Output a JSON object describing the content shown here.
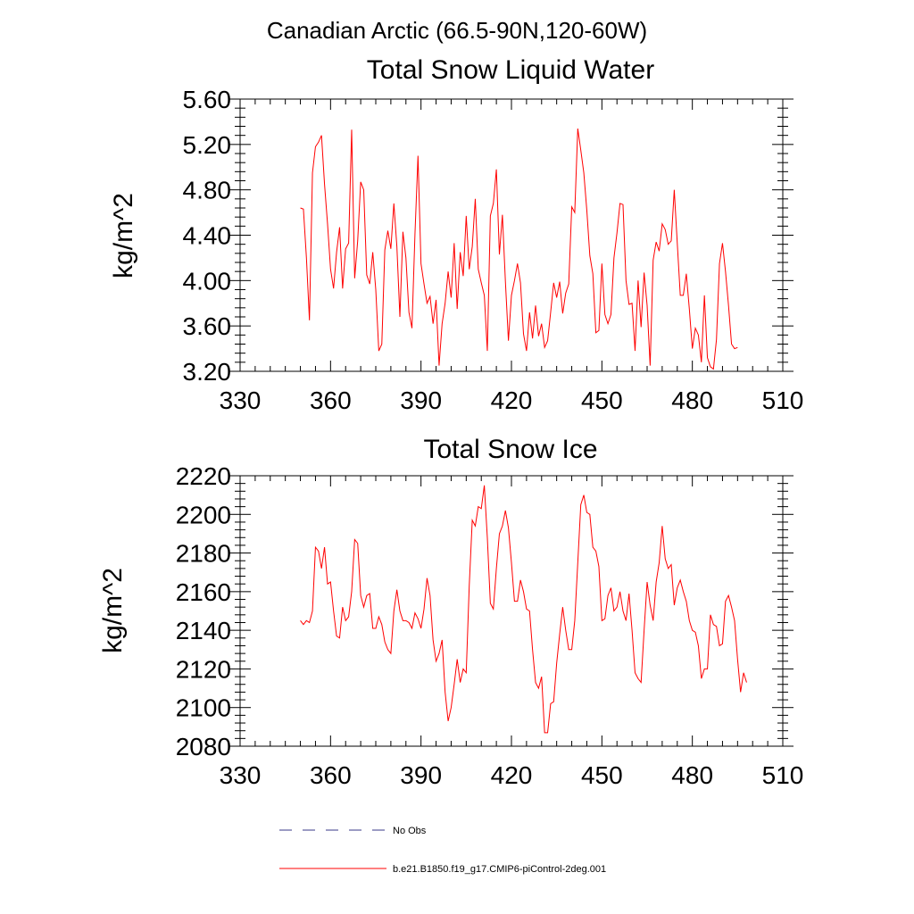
{
  "figure": {
    "title": "Canadian Arctic (66.5-90N,120-60W)",
    "series_color": "#ff0000",
    "legend": [
      {
        "label": "No Obs",
        "color": "#3a3a8a",
        "style": "dashed"
      },
      {
        "label": "b.e21.B1850.f19_g17.CMIP6-piControl-2deg.001",
        "color": "#ff0000",
        "style": "solid"
      }
    ]
  },
  "chart_data": [
    {
      "type": "line",
      "title": "Total Snow Liquid Water",
      "xlabel": "",
      "ylabel": "kg/m^2",
      "xlim": [
        330,
        510
      ],
      "ylim": [
        3.2,
        5.6
      ],
      "xticks": [
        "330",
        "360",
        "390",
        "420",
        "450",
        "480",
        "510"
      ],
      "yticks": [
        "3.20",
        "3.60",
        "4.00",
        "4.40",
        "4.80",
        "5.20",
        "5.60"
      ],
      "x_start": 350,
      "x_step": 1,
      "series": [
        {
          "name": "b.e21.B1850.f19_g17.CMIP6-piControl-2deg.001",
          "values": [
            4.64,
            4.63,
            4.2,
            3.65,
            4.95,
            5.18,
            5.22,
            5.28,
            4.85,
            4.5,
            4.1,
            3.93,
            4.25,
            4.47,
            3.93,
            4.28,
            4.33,
            5.33,
            4.02,
            4.35,
            4.87,
            4.8,
            4.05,
            3.97,
            4.25,
            3.92,
            3.38,
            3.44,
            4.27,
            4.44,
            4.28,
            4.68,
            4.3,
            3.68,
            4.43,
            4.2,
            3.72,
            3.58,
            4.41,
            5.1,
            4.15,
            3.97,
            3.8,
            3.86,
            3.62,
            3.83,
            3.25,
            3.62,
            3.8,
            4.08,
            3.85,
            4.33,
            3.75,
            4.25,
            4.04,
            4.57,
            4.1,
            4.3,
            4.72,
            4.1,
            3.98,
            3.87,
            3.38,
            4.57,
            4.68,
            4.98,
            4.23,
            4.58,
            3.99,
            3.47,
            3.87,
            4.0,
            4.15,
            3.98,
            3.53,
            3.38,
            3.72,
            3.49,
            3.78,
            3.51,
            3.62,
            3.41,
            3.47,
            3.72,
            3.98,
            3.85,
            3.99,
            3.71,
            3.89,
            3.97,
            4.65,
            4.6,
            5.34,
            5.15,
            4.95,
            4.62,
            4.22,
            4.06,
            3.54,
            3.56,
            4.15,
            3.7,
            3.62,
            3.7,
            4.2,
            4.42,
            4.68,
            4.67,
            4.0,
            3.79,
            3.8,
            3.38,
            4.0,
            3.59,
            4.07,
            3.78,
            3.25,
            4.18,
            4.34,
            4.26,
            4.5,
            4.45,
            4.32,
            4.35,
            4.8,
            4.33,
            3.87,
            3.87,
            4.06,
            3.75,
            3.4,
            3.58,
            3.52,
            3.28,
            3.87,
            3.32,
            3.24,
            3.22,
            3.48,
            4.15,
            4.33,
            4.08,
            3.78,
            3.44,
            3.4,
            3.41
          ]
        }
      ]
    },
    {
      "type": "line",
      "title": "Total Snow Ice",
      "xlabel": "",
      "ylabel": "kg/m^2",
      "xlim": [
        330,
        510
      ],
      "ylim": [
        2080,
        2220
      ],
      "xticks": [
        "330",
        "360",
        "390",
        "420",
        "450",
        "480",
        "510"
      ],
      "yticks": [
        "2080",
        "2100",
        "2120",
        "2140",
        "2160",
        "2180",
        "2200",
        "2220"
      ],
      "x_start": 350,
      "x_step": 1,
      "series": [
        {
          "name": "b.e21.B1850.f19_g17.CMIP6-piControl-2deg.001",
          "values": [
            2145,
            2143,
            2145,
            2144,
            2150,
            2183,
            2181,
            2172,
            2183,
            2164,
            2165,
            2150,
            2137,
            2136,
            2152,
            2145,
            2147,
            2160,
            2187,
            2185,
            2158,
            2152,
            2158,
            2159,
            2141,
            2141,
            2147,
            2143,
            2134,
            2130,
            2128,
            2150,
            2161,
            2150,
            2145,
            2145,
            2144,
            2141,
            2149,
            2146,
            2141,
            2151,
            2167,
            2158,
            2135,
            2124,
            2128,
            2135,
            2108,
            2093,
            2100,
            2112,
            2125,
            2113,
            2120,
            2118,
            2163,
            2197,
            2194,
            2204,
            2203,
            2215,
            2188,
            2154,
            2151,
            2172,
            2190,
            2194,
            2202,
            2193,
            2175,
            2155,
            2155,
            2166,
            2160,
            2151,
            2150,
            2130,
            2113,
            2110,
            2116,
            2087,
            2087,
            2102,
            2103,
            2123,
            2138,
            2152,
            2140,
            2130,
            2130,
            2145,
            2175,
            2205,
            2210,
            2201,
            2200,
            2183,
            2181,
            2173,
            2145,
            2146,
            2158,
            2162,
            2150,
            2152,
            2160,
            2150,
            2145,
            2159,
            2140,
            2118,
            2115,
            2113,
            2140,
            2165,
            2153,
            2145,
            2165,
            2175,
            2194,
            2177,
            2172,
            2174,
            2153,
            2162,
            2166,
            2160,
            2155,
            2145,
            2140,
            2139,
            2132,
            2115,
            2120,
            2120,
            2148,
            2143,
            2142,
            2132,
            2133,
            2155,
            2158,
            2152,
            2145,
            2125,
            2108,
            2118,
            2113
          ]
        }
      ]
    }
  ]
}
